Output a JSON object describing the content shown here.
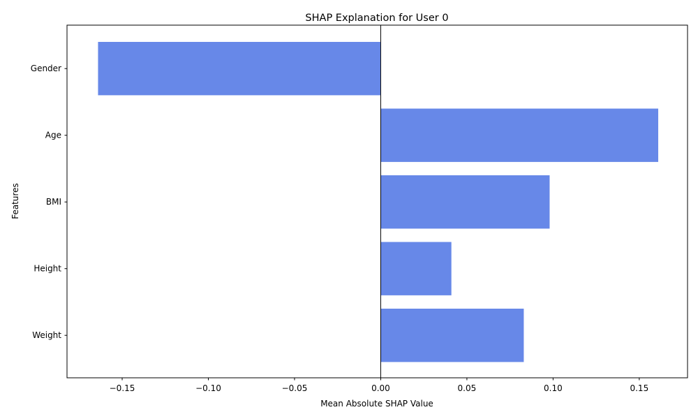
{
  "chart_data": {
    "type": "bar",
    "orientation": "horizontal",
    "title": "SHAP Explanation for User 0",
    "xlabel": "Mean Absolute SHAP Value",
    "ylabel": "Features",
    "categories": [
      "Gender",
      "Age",
      "BMI",
      "Height",
      "Weight"
    ],
    "values": [
      -0.164,
      0.161,
      0.098,
      0.041,
      0.083
    ],
    "xlim": [
      -0.182,
      0.178
    ],
    "xticks": [
      -0.15,
      -0.1,
      -0.05,
      0.0,
      0.05,
      0.1,
      0.15
    ],
    "xtick_labels": [
      "−0.15",
      "−0.10",
      "−0.05",
      "0.00",
      "0.05",
      "0.10",
      "0.15"
    ],
    "zero_line": true,
    "grid": false,
    "bar_color": "#6788e8"
  }
}
